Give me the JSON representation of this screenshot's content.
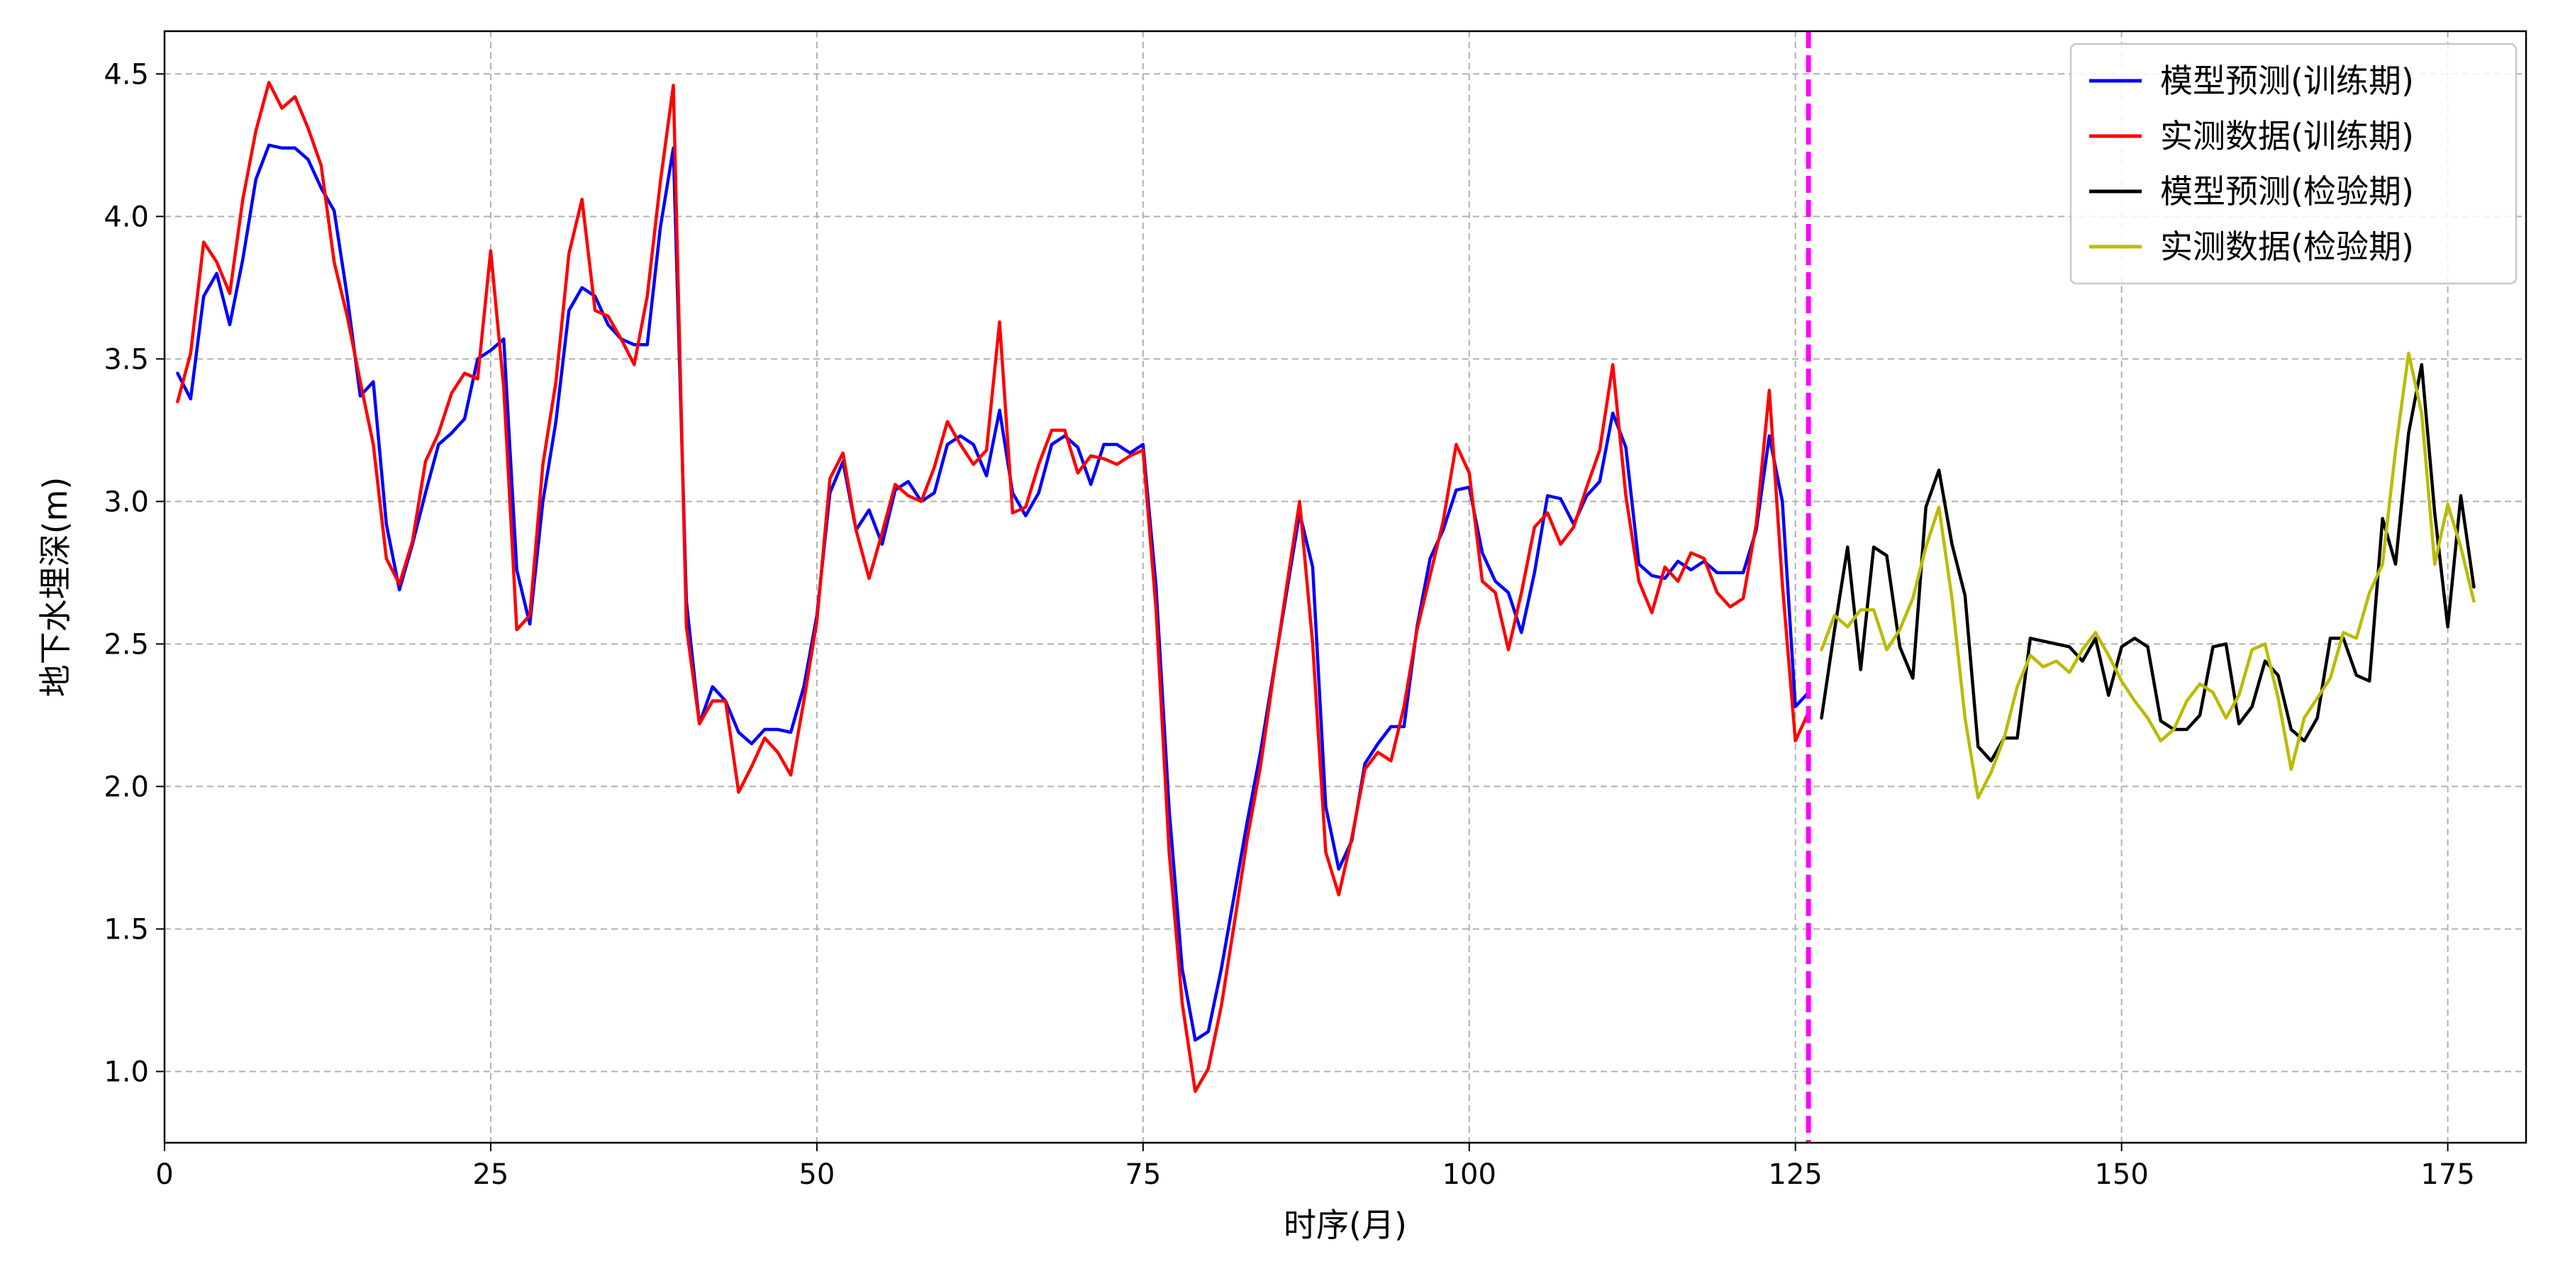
{
  "chart_data": {
    "type": "line",
    "xlabel": "时序(月)",
    "ylabel": "地下水埋深(m)",
    "xlim": [
      0,
      181
    ],
    "ylim": [
      0.75,
      4.65
    ],
    "x_ticks": [
      0,
      25,
      50,
      75,
      100,
      125,
      150,
      175
    ],
    "y_ticks": [
      1.0,
      1.5,
      2.0,
      2.5,
      3.0,
      3.5,
      4.0,
      4.5
    ],
    "x_tick_labels": [
      "0",
      "25",
      "50",
      "75",
      "100",
      "125",
      "150",
      "175"
    ],
    "y_tick_labels": [
      "1.0",
      "1.5",
      "2.0",
      "2.5",
      "3.0",
      "3.5",
      "4.0",
      "4.5"
    ],
    "grid": true,
    "legend_position": "top-right",
    "divider": {
      "x": 126,
      "color": "#ff00ff"
    },
    "series": [
      {
        "name": "模型预测(训练期)",
        "color": "#0000ff",
        "x_start": 1,
        "values": [
          3.45,
          3.36,
          3.72,
          3.8,
          3.62,
          3.85,
          4.13,
          4.25,
          4.24,
          4.24,
          4.2,
          4.1,
          4.02,
          3.72,
          3.37,
          3.42,
          2.92,
          2.69,
          2.85,
          3.03,
          3.2,
          3.24,
          3.29,
          3.5,
          3.53,
          3.57,
          2.76,
          2.57,
          3.0,
          3.28,
          3.67,
          3.75,
          3.72,
          3.62,
          3.57,
          3.55,
          3.55,
          3.96,
          4.24,
          2.65,
          2.22,
          2.35,
          2.3,
          2.19,
          2.15,
          2.2,
          2.2,
          2.19,
          2.35,
          2.6,
          3.03,
          3.14,
          2.9,
          2.97,
          2.85,
          3.04,
          3.07,
          3.0,
          3.03,
          3.2,
          3.23,
          3.2,
          3.09,
          3.32,
          3.03,
          2.95,
          3.03,
          3.2,
          3.23,
          3.19,
          3.06,
          3.2,
          3.2,
          3.17,
          3.2,
          2.7,
          1.92,
          1.36,
          1.11,
          1.14,
          1.36,
          1.62,
          1.88,
          2.12,
          2.4,
          2.68,
          2.96,
          2.77,
          1.93,
          1.71,
          1.81,
          2.08,
          2.15,
          2.21,
          2.21,
          2.56,
          2.8,
          2.9,
          3.04,
          3.05,
          2.82,
          2.72,
          2.68,
          2.54,
          2.75,
          3.02,
          3.01,
          2.92,
          3.02,
          3.07,
          3.31,
          3.19,
          2.78,
          2.74,
          2.73,
          2.79,
          2.76,
          2.79,
          2.75,
          2.75,
          2.75,
          2.9,
          3.23,
          3.0,
          2.28,
          2.33
        ]
      },
      {
        "name": "实测数据(训练期)",
        "color": "#ff0000",
        "x_start": 1,
        "values": [
          3.35,
          3.52,
          3.91,
          3.84,
          3.73,
          4.06,
          4.3,
          4.47,
          4.38,
          4.42,
          4.31,
          4.18,
          3.84,
          3.65,
          3.42,
          3.2,
          2.8,
          2.71,
          2.86,
          3.14,
          3.24,
          3.38,
          3.45,
          3.43,
          3.88,
          3.4,
          2.55,
          2.6,
          3.13,
          3.42,
          3.87,
          4.06,
          3.67,
          3.65,
          3.57,
          3.48,
          3.72,
          4.12,
          4.46,
          2.56,
          2.22,
          2.3,
          2.3,
          1.98,
          2.07,
          2.17,
          2.12,
          2.04,
          2.3,
          2.58,
          3.08,
          3.17,
          2.9,
          2.73,
          2.89,
          3.06,
          3.02,
          3.0,
          3.12,
          3.28,
          3.2,
          3.13,
          3.18,
          3.63,
          2.96,
          2.98,
          3.13,
          3.25,
          3.25,
          3.1,
          3.16,
          3.15,
          3.13,
          3.16,
          3.18,
          2.62,
          1.77,
          1.24,
          0.93,
          1.01,
          1.23,
          1.52,
          1.82,
          2.07,
          2.39,
          2.7,
          3.0,
          2.5,
          1.77,
          1.62,
          1.82,
          2.06,
          2.12,
          2.09,
          2.28,
          2.55,
          2.74,
          2.93,
          3.2,
          3.1,
          2.72,
          2.68,
          2.48,
          2.68,
          2.91,
          2.96,
          2.85,
          2.91,
          3.05,
          3.18,
          3.48,
          3.02,
          2.72,
          2.61,
          2.77,
          2.72,
          2.82,
          2.8,
          2.68,
          2.63,
          2.66,
          2.92,
          3.39,
          2.71,
          2.16,
          2.26
        ]
      },
      {
        "name": "模型预测(检验期)",
        "color": "#000000",
        "x_start": 127,
        "values": [
          2.24,
          2.55,
          2.84,
          2.41,
          2.84,
          2.81,
          2.49,
          2.38,
          2.98,
          3.11,
          2.85,
          2.67,
          2.14,
          2.09,
          2.17,
          2.17,
          2.52,
          2.51,
          2.5,
          2.49,
          2.44,
          2.52,
          2.32,
          2.49,
          2.52,
          2.49,
          2.23,
          2.2,
          2.2,
          2.25,
          2.49,
          2.5,
          2.22,
          2.28,
          2.44,
          2.39,
          2.2,
          2.16,
          2.24,
          2.52,
          2.52,
          2.39,
          2.37,
          2.94,
          2.78,
          3.24,
          3.48,
          2.96,
          2.56,
          3.02,
          2.7
        ]
      },
      {
        "name": "实测数据(检验期)",
        "color": "#bbbb00",
        "x_start": 127,
        "values": [
          2.48,
          2.6,
          2.56,
          2.62,
          2.62,
          2.48,
          2.55,
          2.66,
          2.84,
          2.98,
          2.66,
          2.24,
          1.96,
          2.05,
          2.17,
          2.35,
          2.46,
          2.42,
          2.44,
          2.4,
          2.48,
          2.54,
          2.46,
          2.37,
          2.3,
          2.24,
          2.16,
          2.2,
          2.3,
          2.36,
          2.33,
          2.24,
          2.32,
          2.48,
          2.5,
          2.31,
          2.06,
          2.24,
          2.31,
          2.38,
          2.54,
          2.52,
          2.68,
          2.78,
          3.18,
          3.52,
          3.31,
          2.78,
          2.99,
          2.84,
          2.65
        ]
      }
    ]
  }
}
